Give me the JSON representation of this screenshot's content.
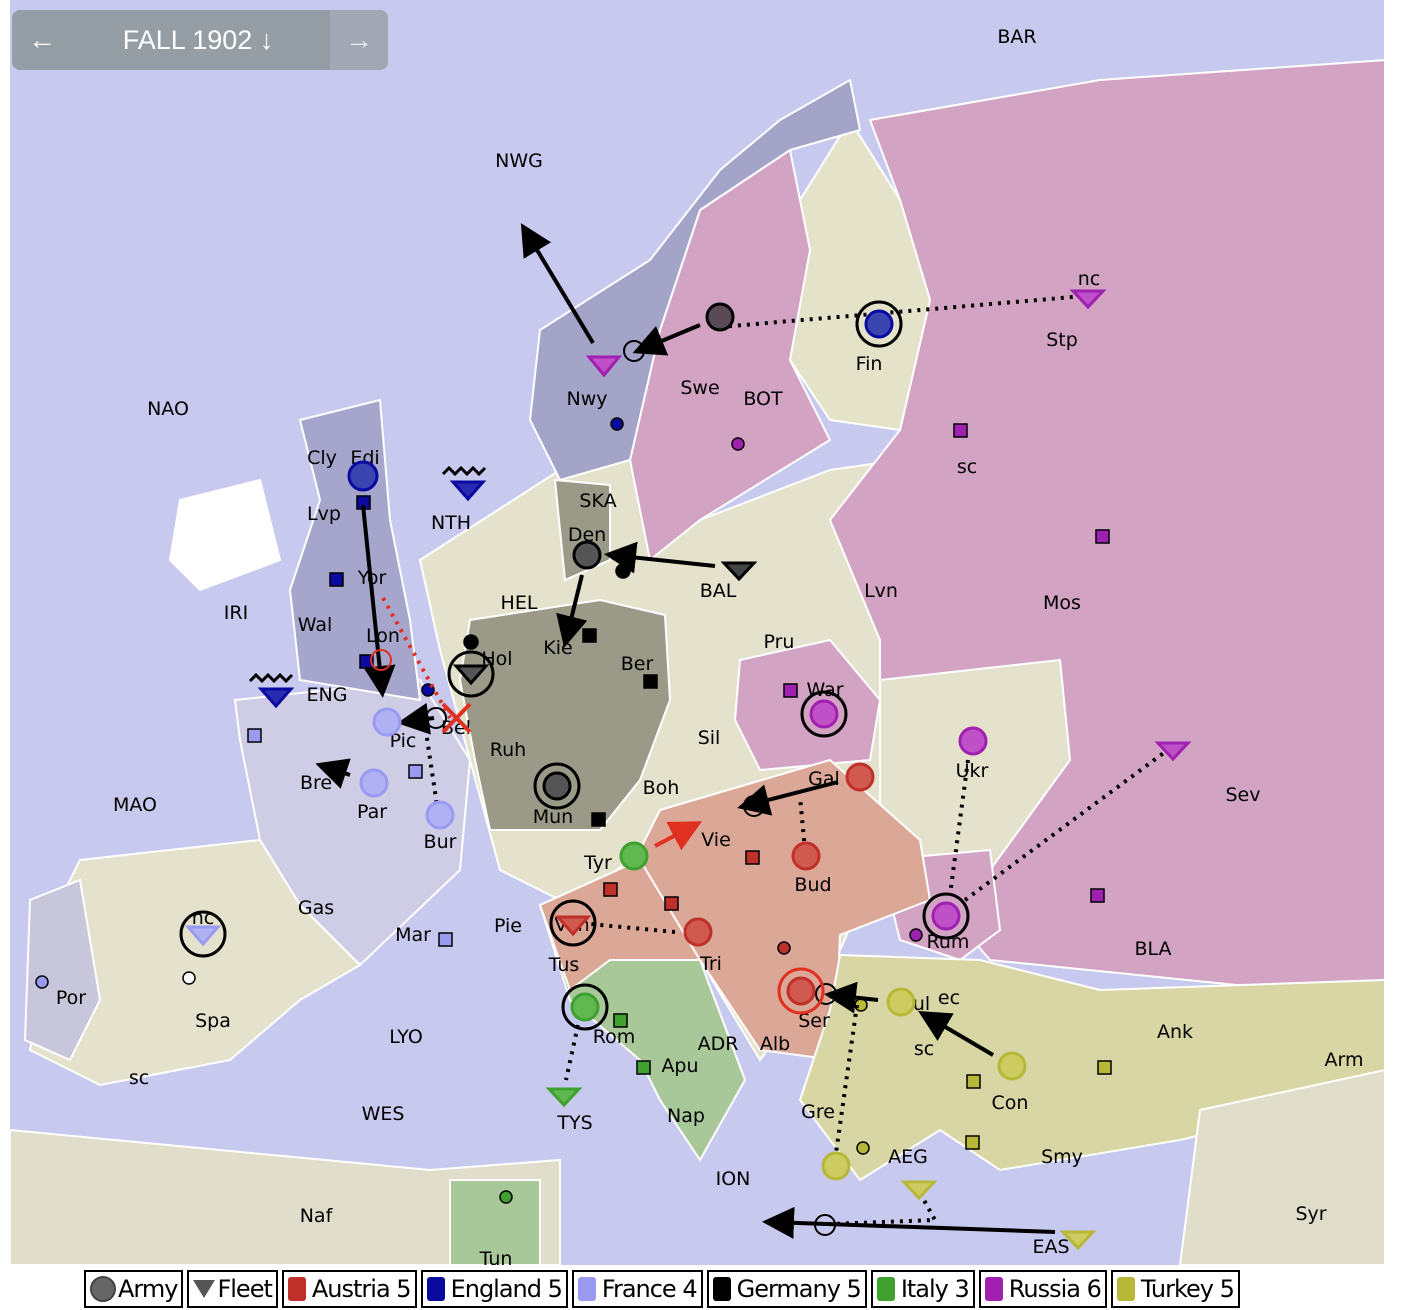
{
  "phase": {
    "title": "FALL 1902",
    "prev_icon": "arrow-left-icon",
    "next_icon": "arrow-right-icon",
    "down_icon": "arrow-down-icon",
    "prev": "←",
    "next": "→",
    "down": "↓"
  },
  "colors": {
    "sea": "#c8c9ee",
    "neutral": "#e4e2cc",
    "austria": "#c0302a",
    "england": "#0a0aa0",
    "france": "#9a9af0",
    "germany": "#000000",
    "italy": "#40a030",
    "russia": "#a020b0",
    "turkey": "#b8b838"
  },
  "provinces": [
    "BAR",
    "NWG",
    "NAO",
    "Nwy",
    "Swe",
    "BOT",
    "Fin",
    "Stp",
    "nc",
    "sc",
    "Cly",
    "Edi",
    "Lvp",
    "NTH",
    "SKA",
    "Den",
    "IRI",
    "Wal",
    "Yor",
    "HEL",
    "BAL",
    "Lvn",
    "Mos",
    "Lon",
    "Kie",
    "Ber",
    "Pru",
    "Hol",
    "ENG",
    "Bel",
    "Pic",
    "Ruh",
    "War",
    "Sil",
    "Ukr",
    "Sev",
    "Bre",
    "Par",
    "Bur",
    "Mun",
    "Boh",
    "Gal",
    "Vie",
    "MAO",
    "Tyr",
    "Bud",
    "Gas",
    "nc",
    "Mar",
    "Pie",
    "Ven",
    "Tri",
    "Rum",
    "BLA",
    "Tus",
    "Por",
    "Spa",
    "Bul",
    "ec",
    "Ser",
    "Rom",
    "LYO",
    "ADR",
    "Alb",
    "sc",
    "Ank",
    "Arm",
    "sc",
    "Apu",
    "Con",
    "WES",
    "TYS",
    "Nap",
    "Gre",
    "AEG",
    "Smy",
    "ION",
    "Naf",
    "Syr",
    "EAS",
    "Tun"
  ],
  "legend": [
    {
      "label": "Army",
      "icon": "army-icon"
    },
    {
      "label": "Fleet",
      "icon": "fleet-icon"
    },
    {
      "label": "Austria 5",
      "color": "#c0302a"
    },
    {
      "label": "England 5",
      "color": "#0a0aa0"
    },
    {
      "label": "France 4",
      "color": "#9a9af0"
    },
    {
      "label": "Germany 5",
      "color": "#000000"
    },
    {
      "label": "Italy 3",
      "color": "#40a030"
    },
    {
      "label": "Russia 6",
      "color": "#a020b0"
    },
    {
      "label": "Turkey 5",
      "color": "#b8b838"
    }
  ]
}
